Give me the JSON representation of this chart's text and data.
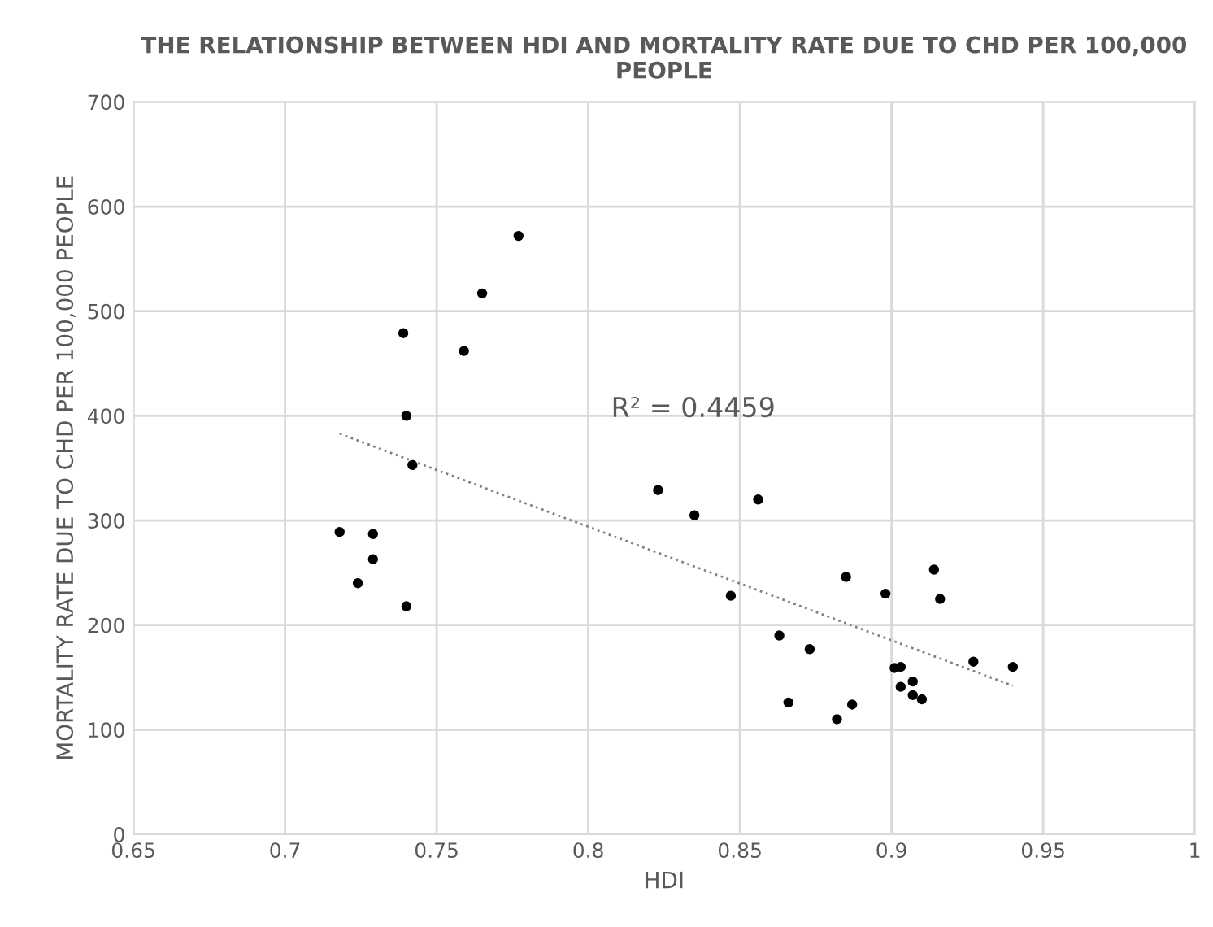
{
  "chart_data": {
    "type": "scatter",
    "title": "THE RELATIONSHIP BETWEEN HDI AND MORTALITY RATE DUE TO CHD PER 100,000 PEOPLE",
    "xlabel": "HDI",
    "ylabel": "MORTALITY RATE DUE TO CHD PER 100,000 PEOPLE",
    "series": [
      {
        "color": "#000000",
        "marker": "circle",
        "x": [
          0.718,
          0.724,
          0.729,
          0.729,
          0.74,
          0.739,
          0.74,
          0.742,
          0.759,
          0.765,
          0.777,
          0.823,
          0.835,
          0.847,
          0.856,
          0.863,
          0.866,
          0.873,
          0.882,
          0.885,
          0.887,
          0.898,
          0.901,
          0.903,
          0.903,
          0.907,
          0.907,
          0.91,
          0.914,
          0.916,
          0.927,
          0.94
        ],
        "values": [
          289,
          240,
          287,
          263,
          218,
          479,
          400,
          353,
          462,
          517,
          572,
          329,
          305,
          228,
          320,
          190,
          126,
          177,
          110,
          246,
          124,
          230,
          159,
          160,
          141,
          146,
          133,
          129,
          253,
          225,
          165,
          160
        ]
      },
      {
        "type": "line",
        "color": "#7f7f7f",
        "line_style": "dotted",
        "marker": "none",
        "x": [
          0.718,
          0.94
        ],
        "values": [
          383,
          142
        ]
      }
    ],
    "annotations": [
      "R² = 0.4459"
    ],
    "xlim": [
      0.65,
      1
    ],
    "xticks": [
      0.65,
      0.7,
      0.75,
      0.8,
      0.85,
      0.9,
      0.95,
      1
    ],
    "ylim": [
      0,
      700
    ],
    "yticks": [
      0,
      100,
      200,
      300,
      400,
      500,
      600,
      700
    ],
    "grid": true
  }
}
